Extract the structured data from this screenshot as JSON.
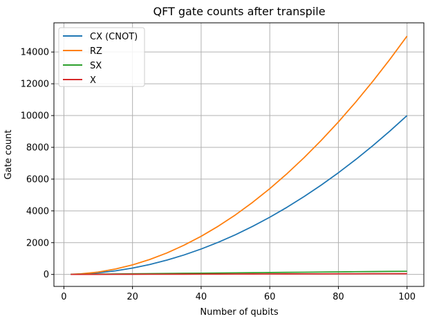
{
  "chart_data": {
    "type": "line",
    "title": "QFT gate counts after transpile",
    "xlabel": "Number of qubits",
    "ylabel": "Gate count",
    "xlim": [
      -2.9,
      104.9
    ],
    "ylim": [
      -754,
      15837
    ],
    "xticks": [
      0,
      20,
      40,
      60,
      80,
      100
    ],
    "yticks": [
      0,
      2000,
      4000,
      6000,
      8000,
      10000,
      12000,
      14000
    ],
    "grid": true,
    "legend_position": "top-left",
    "series": [
      {
        "name": "CX (CNOT)",
        "color": "#1f77b4",
        "x": [
          2,
          5,
          10,
          15,
          20,
          25,
          30,
          35,
          40,
          45,
          50,
          55,
          60,
          65,
          70,
          75,
          80,
          85,
          90,
          95,
          100
        ],
        "y": [
          4,
          25,
          100,
          225,
          400,
          625,
          900,
          1225,
          1600,
          2025,
          2500,
          3025,
          3600,
          4225,
          4900,
          5625,
          6400,
          7225,
          8100,
          9025,
          10000
        ]
      },
      {
        "name": "RZ",
        "color": "#ff7f0e",
        "x": [
          2,
          5,
          10,
          15,
          20,
          25,
          30,
          35,
          40,
          45,
          50,
          55,
          60,
          65,
          70,
          75,
          80,
          85,
          90,
          95,
          100
        ],
        "y": [
          6,
          38,
          150,
          338,
          600,
          938,
          1350,
          1838,
          2400,
          3038,
          3750,
          4538,
          5400,
          6338,
          7350,
          8438,
          9600,
          10838,
          12150,
          13538,
          15000
        ]
      },
      {
        "name": "SX",
        "color": "#2ca02c",
        "x": [
          2,
          5,
          10,
          15,
          20,
          25,
          30,
          35,
          40,
          45,
          50,
          55,
          60,
          65,
          70,
          75,
          80,
          85,
          90,
          95,
          100
        ],
        "y": [
          4,
          10,
          20,
          30,
          40,
          50,
          60,
          70,
          80,
          90,
          100,
          110,
          120,
          130,
          140,
          150,
          160,
          170,
          180,
          190,
          200
        ]
      },
      {
        "name": "X",
        "color": "#d62728",
        "x": [
          2,
          5,
          10,
          15,
          20,
          25,
          30,
          35,
          40,
          45,
          50,
          55,
          60,
          65,
          70,
          75,
          80,
          85,
          90,
          95,
          100
        ],
        "y": [
          1,
          2,
          5,
          7,
          10,
          12,
          15,
          17,
          20,
          22,
          25,
          27,
          30,
          32,
          35,
          37,
          40,
          42,
          45,
          47,
          50
        ]
      }
    ]
  }
}
